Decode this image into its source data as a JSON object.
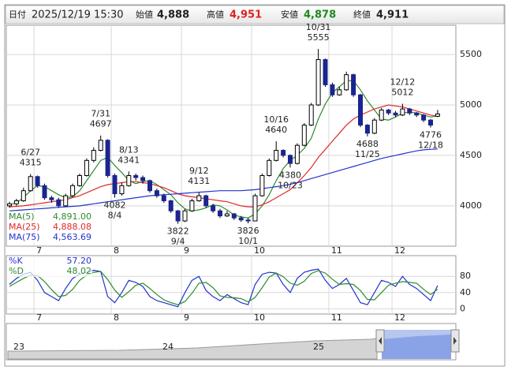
{
  "chart_data": {
    "type": "candlestick",
    "header": {
      "date_label": "日付",
      "date": "2025/12/19 15:30",
      "open_label": "始値",
      "open": "4,888",
      "high_label": "高値",
      "high": "4,951",
      "low_label": "安値",
      "low": "4,878",
      "close_label": "終値",
      "close": "4,911"
    },
    "ohlc": [
      [
        4000,
        4040,
        3980,
        4020
      ],
      [
        4020,
        4070,
        4000,
        4050
      ],
      [
        4050,
        4180,
        4040,
        4150
      ],
      [
        4150,
        4315,
        4140,
        4290
      ],
      [
        4290,
        4300,
        4180,
        4200
      ],
      [
        4200,
        4220,
        4060,
        4080
      ],
      [
        4080,
        4100,
        4030,
        4060
      ],
      [
        4060,
        4080,
        3980,
        4000
      ],
      [
        4000,
        4120,
        3990,
        4100
      ],
      [
        4100,
        4220,
        4090,
        4200
      ],
      [
        4200,
        4320,
        4190,
        4300
      ],
      [
        4300,
        4470,
        4290,
        4450
      ],
      [
        4450,
        4580,
        4430,
        4550
      ],
      [
        4550,
        4697,
        4540,
        4650
      ],
      [
        4650,
        4660,
        4280,
        4300
      ],
      [
        4300,
        4320,
        4082,
        4120
      ],
      [
        4120,
        4230,
        4100,
        4200
      ],
      [
        4200,
        4341,
        4190,
        4300
      ],
      [
        4300,
        4320,
        4250,
        4280
      ],
      [
        4280,
        4300,
        4220,
        4250
      ],
      [
        4250,
        4260,
        4130,
        4150
      ],
      [
        4150,
        4170,
        4080,
        4100
      ],
      [
        4100,
        4120,
        4030,
        4050
      ],
      [
        4050,
        4060,
        3930,
        3950
      ],
      [
        3950,
        3960,
        3822,
        3850
      ],
      [
        3850,
        3970,
        3840,
        3950
      ],
      [
        3950,
        4070,
        3940,
        4050
      ],
      [
        4050,
        4131,
        4040,
        4100
      ],
      [
        4100,
        4110,
        3980,
        4000
      ],
      [
        4000,
        4020,
        3930,
        3950
      ],
      [
        3950,
        3970,
        3880,
        3900
      ],
      [
        3900,
        3950,
        3890,
        3920
      ],
      [
        3920,
        3930,
        3860,
        3880
      ],
      [
        3880,
        3900,
        3840,
        3860
      ],
      [
        3860,
        3880,
        3826,
        3850
      ],
      [
        3850,
        4120,
        3850,
        4100
      ],
      [
        4100,
        4320,
        4090,
        4300
      ],
      [
        4300,
        4470,
        4290,
        4450
      ],
      [
        4450,
        4640,
        4440,
        4550
      ],
      [
        4550,
        4560,
        4480,
        4500
      ],
      [
        4500,
        4510,
        4380,
        4420
      ],
      [
        4420,
        4620,
        4410,
        4600
      ],
      [
        4600,
        4820,
        4590,
        4800
      ],
      [
        4800,
        5020,
        4790,
        5000
      ],
      [
        5000,
        5555,
        4990,
        5450
      ],
      [
        5450,
        5460,
        5180,
        5200
      ],
      [
        5200,
        5220,
        5080,
        5100
      ],
      [
        5100,
        5180,
        5090,
        5150
      ],
      [
        5150,
        5330,
        5140,
        5300
      ],
      [
        5300,
        5310,
        5080,
        5100
      ],
      [
        5100,
        5110,
        4780,
        4800
      ],
      [
        4800,
        4810,
        4688,
        4720
      ],
      [
        4720,
        4870,
        4710,
        4850
      ],
      [
        4850,
        4970,
        4840,
        4950
      ],
      [
        4950,
        4960,
        4900,
        4920
      ],
      [
        4920,
        4940,
        4880,
        4900
      ],
      [
        4900,
        5012,
        4890,
        4960
      ],
      [
        4960,
        4970,
        4900,
        4920
      ],
      [
        4920,
        4930,
        4880,
        4900
      ],
      [
        4900,
        4910,
        4830,
        4850
      ],
      [
        4850,
        4860,
        4776,
        4800
      ],
      [
        4888,
        4951,
        4878,
        4911
      ]
    ],
    "up_color": "#ffffff",
    "down_color": "#1a2590",
    "series": [
      {
        "name": "MA(5)",
        "color": "#2e8b2e",
        "value_label": "4,891.00",
        "values": [
          4010,
          4030,
          4080,
          4150,
          4200,
          4190,
          4150,
          4110,
          4080,
          4090,
          4150,
          4250,
          4350,
          4450,
          4480,
          4400,
          4330,
          4250,
          4220,
          4240,
          4250,
          4210,
          4160,
          4110,
          4030,
          3970,
          3950,
          3960,
          3980,
          4010,
          4000,
          3960,
          3910,
          3890,
          3880,
          3920,
          4000,
          4110,
          4250,
          4370,
          4450,
          4500,
          4570,
          4670,
          4860,
          5010,
          5120,
          5180,
          5240,
          5240,
          5150,
          5040,
          4950,
          4860,
          4850,
          4880,
          4920,
          4930,
          4920,
          4900,
          4880,
          4891
        ]
      },
      {
        "name": "MA(25)",
        "color": "#e02828",
        "value_label": "4,888.08",
        "values": [
          3990,
          3995,
          4000,
          4010,
          4020,
          4030,
          4040,
          4050,
          4060,
          4080,
          4100,
          4130,
          4160,
          4190,
          4210,
          4220,
          4230,
          4240,
          4240,
          4230,
          4220,
          4200,
          4180,
          4150,
          4120,
          4100,
          4090,
          4080,
          4070,
          4060,
          4050,
          4040,
          4020,
          4000,
          3990,
          3990,
          4010,
          4040,
          4080,
          4120,
          4160,
          4230,
          4300,
          4380,
          4480,
          4560,
          4640,
          4720,
          4800,
          4860,
          4900,
          4930,
          4960,
          4980,
          5000,
          4990,
          4980,
          4960,
          4940,
          4920,
          4900,
          4888.08
        ]
      },
      {
        "name": "MA(75)",
        "color": "#2233cc",
        "value_label": "4,563.69",
        "values": [
          3950,
          3955,
          3960,
          3965,
          3970,
          3975,
          3980,
          3985,
          3990,
          3995,
          4000,
          4010,
          4020,
          4030,
          4040,
          4050,
          4060,
          4070,
          4080,
          4090,
          4100,
          4105,
          4110,
          4115,
          4120,
          4125,
          4130,
          4135,
          4140,
          4145,
          4150,
          4150,
          4150,
          4150,
          4155,
          4160,
          4170,
          4180,
          4190,
          4200,
          4215,
          4230,
          4250,
          4270,
          4290,
          4310,
          4330,
          4350,
          4370,
          4390,
          4410,
          4430,
          4450,
          4470,
          4485,
          4500,
          4515,
          4530,
          4545,
          4555,
          4560,
          4563.69
        ]
      }
    ],
    "ylim": [
      3600,
      5790
    ],
    "yticks": [
      4000,
      4500,
      5000,
      5500
    ],
    "xticks": [
      {
        "value": 3.5,
        "label": "7"
      },
      {
        "value": 14.5,
        "label": "8"
      },
      {
        "value": 24.5,
        "label": "9"
      },
      {
        "value": 34.5,
        "label": "10"
      },
      {
        "value": 45.5,
        "label": "11"
      },
      {
        "value": 54.5,
        "label": "12"
      }
    ],
    "grid": true,
    "annotations": [
      {
        "date": "6/27",
        "price": 4315
      },
      {
        "date": "7/31",
        "price": 4697
      },
      {
        "date": "8/4",
        "price": 4082
      },
      {
        "date": "8/13",
        "price": 4341
      },
      {
        "date": "9/4",
        "price": 3822
      },
      {
        "date": "9/12",
        "price": 4131
      },
      {
        "date": "10/1",
        "price": 3826
      },
      {
        "date": "10/16",
        "price": 4640
      },
      {
        "date": "10/23",
        "price": 4380
      },
      {
        "date": "10/31",
        "price": 5555
      },
      {
        "date": "11/25",
        "price": 4688
      },
      {
        "date": "12/12",
        "price": 5012
      },
      {
        "date": "12/18",
        "price": 4776
      }
    ],
    "stochastic": {
      "ylim": [
        -13,
        131
      ],
      "yticks": [
        0,
        40,
        80
      ],
      "series": [
        {
          "name": "%K",
          "color": "#2233cc",
          "value_label": "57.20",
          "values": [
            60,
            75,
            85,
            90,
            70,
            40,
            30,
            20,
            50,
            75,
            85,
            90,
            95,
            92,
            30,
            15,
            40,
            70,
            65,
            55,
            30,
            20,
            15,
            10,
            5,
            40,
            70,
            80,
            45,
            30,
            20,
            35,
            25,
            15,
            10,
            60,
            85,
            90,
            88,
            60,
            40,
            75,
            90,
            95,
            98,
            70,
            50,
            60,
            75,
            45,
            15,
            10,
            40,
            70,
            65,
            55,
            80,
            60,
            50,
            35,
            20,
            57.2
          ]
        },
        {
          "name": "%D",
          "color": "#2e8b2e",
          "value_label": "48.02",
          "values": [
            55,
            65,
            75,
            83,
            82,
            67,
            47,
            30,
            33,
            48,
            70,
            83,
            90,
            92,
            72,
            46,
            28,
            42,
            58,
            63,
            50,
            35,
            22,
            15,
            10,
            18,
            38,
            63,
            65,
            52,
            32,
            28,
            27,
            25,
            17,
            28,
            52,
            78,
            88,
            79,
            63,
            58,
            68,
            87,
            94,
            88,
            73,
            60,
            62,
            60,
            45,
            23,
            22,
            40,
            58,
            63,
            67,
            65,
            63,
            48,
            35,
            48.02
          ]
        }
      ]
    },
    "navigator": {
      "labels": [
        "23",
        "24",
        "25"
      ]
    }
  }
}
